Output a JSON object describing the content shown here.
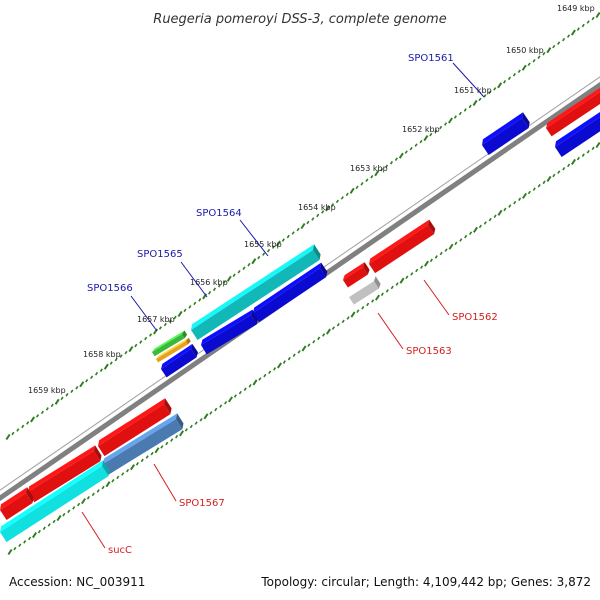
{
  "title": "Ruegeria pomeroyi DSS-3, complete genome",
  "footer": {
    "accession": "Accession: NC_003911",
    "topology": "Topology: circular; Length: 4,109,442 bp; Genes: 3,872"
  },
  "colors": {
    "backbone": "#808080",
    "ticks": "#2e7d1e",
    "forward_label": "#1a1aa8",
    "reverse_label": "#d42020"
  },
  "tick_labels": [
    "1649 kbp",
    "1650 kbp",
    "1651 kbp",
    "1652 kbp",
    "1653 kbp",
    "1654 kbp",
    "1655 kbp",
    "1656 kbp",
    "1657 kbp",
    "1658 kbp",
    "1659 kbp"
  ],
  "genes": [
    {
      "name": "SPO1561",
      "strand": "forward",
      "color": "#0a0ad0"
    },
    {
      "name": "SPO1562",
      "strand": "reverse",
      "color": "#e01010"
    },
    {
      "name": "SPO1563",
      "strand": "reverse",
      "color": "#c0c0c0"
    },
    {
      "name": "SPO1564",
      "strand": "forward",
      "color": "#12b8b8"
    },
    {
      "name": "SPO1565",
      "strand": "forward",
      "color": "#0a0ad0"
    },
    {
      "name": "SPO1566",
      "strand": "forward",
      "color": "#3cb83c"
    },
    {
      "name": "SPO1567",
      "strand": "reverse",
      "color": "#4a7ab0"
    },
    {
      "name": "sucC",
      "strand": "reverse",
      "color": "#10e0e0"
    }
  ]
}
